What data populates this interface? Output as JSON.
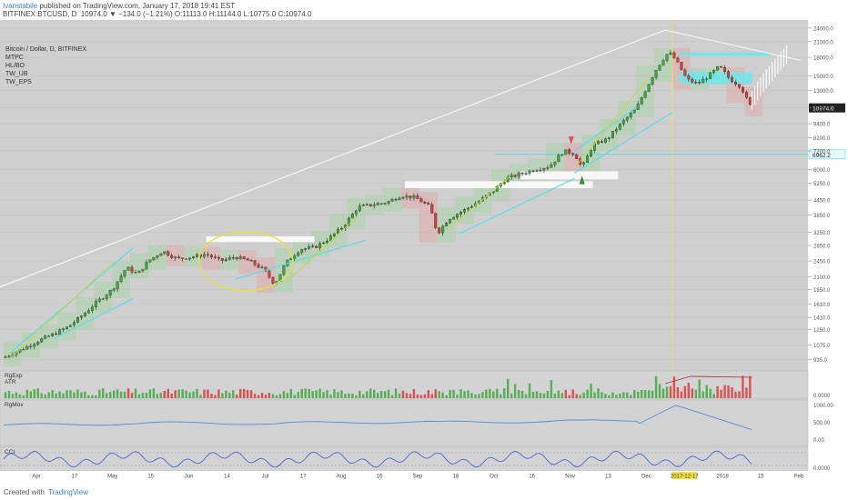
{
  "header": {
    "author": "Ivanstabile",
    "published": " published on TradingView.com, January 17, 2018 19:41 EST",
    "symbol": "BITFINEX:BTCUSD, D",
    "ohlc": "10974.0 ▼ −134.0 (−1.21%) O:11113.0 H:11144.0 L:10775.0 C:10974.0"
  },
  "legend": {
    "title": "Bitcoin / Dollar, D, BITFINEX",
    "studies": [
      "MTPC",
      "HL/BO",
      "TW_UB",
      "TW_EPS"
    ]
  },
  "chart_data": {
    "type": "candlestick",
    "x_ticks": [
      "Apr",
      "17",
      "May",
      "15",
      "Jun",
      "14",
      "Jul",
      "17",
      "Aug",
      "16",
      "Sep",
      "18",
      "Oct",
      "16",
      "Nov",
      "13",
      "Dec",
      "2017-12-17",
      "2018",
      "15",
      "Feb"
    ],
    "y_ticks": [
      "935.0",
      "1075.0",
      "1250.0",
      "1410.0",
      "1610.0",
      "1850.0",
      "2100.0",
      "2450.0",
      "2850.0",
      "3250.0",
      "3850.0",
      "4450.0",
      "5250.0",
      "6000.0",
      "7200.0",
      "8200.0",
      "9400.0",
      "11000.0",
      "13000.0",
      "15000.0",
      "18000.0",
      "21000.0",
      "24000.0"
    ],
    "y_scale": "log",
    "last_price": "10974.0",
    "marked_level": "6962.2",
    "highlight_date": "2017-12-17",
    "price_path": [
      {
        "t": 0,
        "p": 950
      },
      {
        "t": 3,
        "p": 1000
      },
      {
        "t": 6,
        "p": 1050
      },
      {
        "t": 10,
        "p": 1130
      },
      {
        "t": 14,
        "p": 1200
      },
      {
        "t": 18,
        "p": 1290
      },
      {
        "t": 22,
        "p": 1450
      },
      {
        "t": 26,
        "p": 1650
      },
      {
        "t": 30,
        "p": 1850
      },
      {
        "t": 34,
        "p": 2300
      },
      {
        "t": 37,
        "p": 2150
      },
      {
        "t": 40,
        "p": 2450
      },
      {
        "t": 44,
        "p": 2700
      },
      {
        "t": 48,
        "p": 2500
      },
      {
        "t": 52,
        "p": 2550
      },
      {
        "t": 56,
        "p": 2620
      },
      {
        "t": 60,
        "p": 2450
      },
      {
        "t": 64,
        "p": 2550
      },
      {
        "t": 68,
        "p": 2450
      },
      {
        "t": 72,
        "p": 2250
      },
      {
        "t": 75,
        "p": 1950
      },
      {
        "t": 78,
        "p": 2400
      },
      {
        "t": 82,
        "p": 2750
      },
      {
        "t": 86,
        "p": 2800
      },
      {
        "t": 90,
        "p": 3050
      },
      {
        "t": 94,
        "p": 3450
      },
      {
        "t": 98,
        "p": 4150
      },
      {
        "t": 102,
        "p": 4250
      },
      {
        "t": 106,
        "p": 4350
      },
      {
        "t": 110,
        "p": 4650
      },
      {
        "t": 114,
        "p": 4550
      },
      {
        "t": 118,
        "p": 4150
      },
      {
        "t": 120,
        "p": 3200
      },
      {
        "t": 123,
        "p": 3700
      },
      {
        "t": 127,
        "p": 4000
      },
      {
        "t": 131,
        "p": 4350
      },
      {
        "t": 135,
        "p": 4800
      },
      {
        "t": 139,
        "p": 5500
      },
      {
        "t": 143,
        "p": 5750
      },
      {
        "t": 147,
        "p": 6000
      },
      {
        "t": 151,
        "p": 6200
      },
      {
        "t": 155,
        "p": 7200
      },
      {
        "t": 158,
        "p": 7000
      },
      {
        "t": 160,
        "p": 6100
      },
      {
        "t": 163,
        "p": 7600
      },
      {
        "t": 167,
        "p": 8100
      },
      {
        "t": 171,
        "p": 9500
      },
      {
        "t": 175,
        "p": 10900
      },
      {
        "t": 178,
        "p": 13500
      },
      {
        "t": 181,
        "p": 16500
      },
      {
        "t": 184,
        "p": 19000
      },
      {
        "t": 186,
        "p": 17500
      },
      {
        "t": 189,
        "p": 14500
      },
      {
        "t": 192,
        "p": 13900
      },
      {
        "t": 195,
        "p": 15000
      },
      {
        "t": 198,
        "p": 16500
      },
      {
        "t": 201,
        "p": 14500
      },
      {
        "t": 204,
        "p": 13500
      },
      {
        "t": 206,
        "p": 11500
      },
      {
        "t": 207,
        "p": 10974
      }
    ],
    "panels": [
      "RgExp",
      "ATR",
      "RgMov",
      "CCI"
    ],
    "panel_ticks": {
      "vol": [
        "0.0000"
      ],
      "rgmov": [
        "1000.00",
        "500.00",
        "0.00"
      ],
      "cci": [
        "0.0000"
      ]
    }
  },
  "footer": {
    "created": "Created with",
    "brand": "TradingView"
  }
}
